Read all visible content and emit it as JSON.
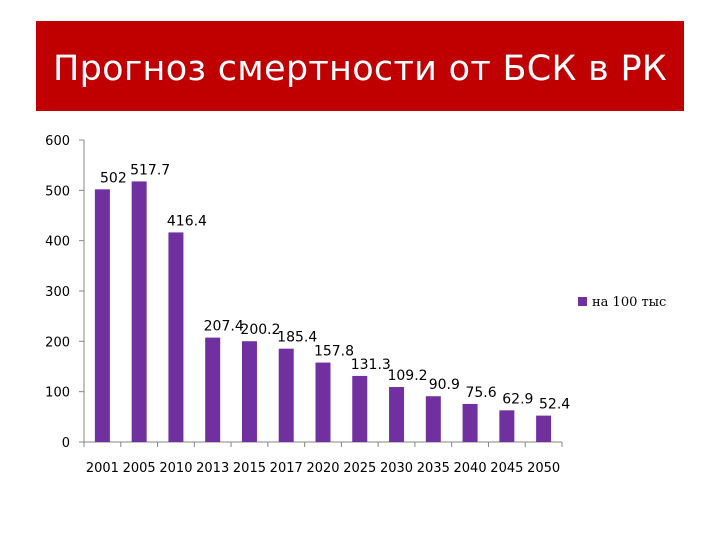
{
  "slide": {
    "title": "Прогноз смертности от БСК в РК",
    "title_bg": "#c00000",
    "title_color": "#ffffff"
  },
  "chart_data": {
    "type": "bar",
    "categories": [
      "2001",
      "2005",
      "2010",
      "2013",
      "2015",
      "2017",
      "2020",
      "2025",
      "2030",
      "2035",
      "2040",
      "2045",
      "2050"
    ],
    "series": [
      {
        "name": "на 100 тыс",
        "values": [
          502,
          517.7,
          416.4,
          207.4,
          200.2,
          185.4,
          157.8,
          131.3,
          109.2,
          90.9,
          75.6,
          62.9,
          52.4
        ],
        "color": "#7030a0"
      }
    ],
    "data_labels": [
      "502",
      "517.7",
      "416.4",
      "207.4",
      "200.2",
      "185.4",
      "157.8",
      "131.3",
      "109.2",
      "90.9",
      "75.6",
      "62.9",
      "52.4"
    ],
    "yticks": [
      "0",
      "100",
      "200",
      "300",
      "400",
      "500",
      "600"
    ],
    "ylim": [
      0,
      600
    ],
    "title": "",
    "xlabel": "",
    "ylabel": "",
    "grid": false,
    "legend_position": "right"
  }
}
